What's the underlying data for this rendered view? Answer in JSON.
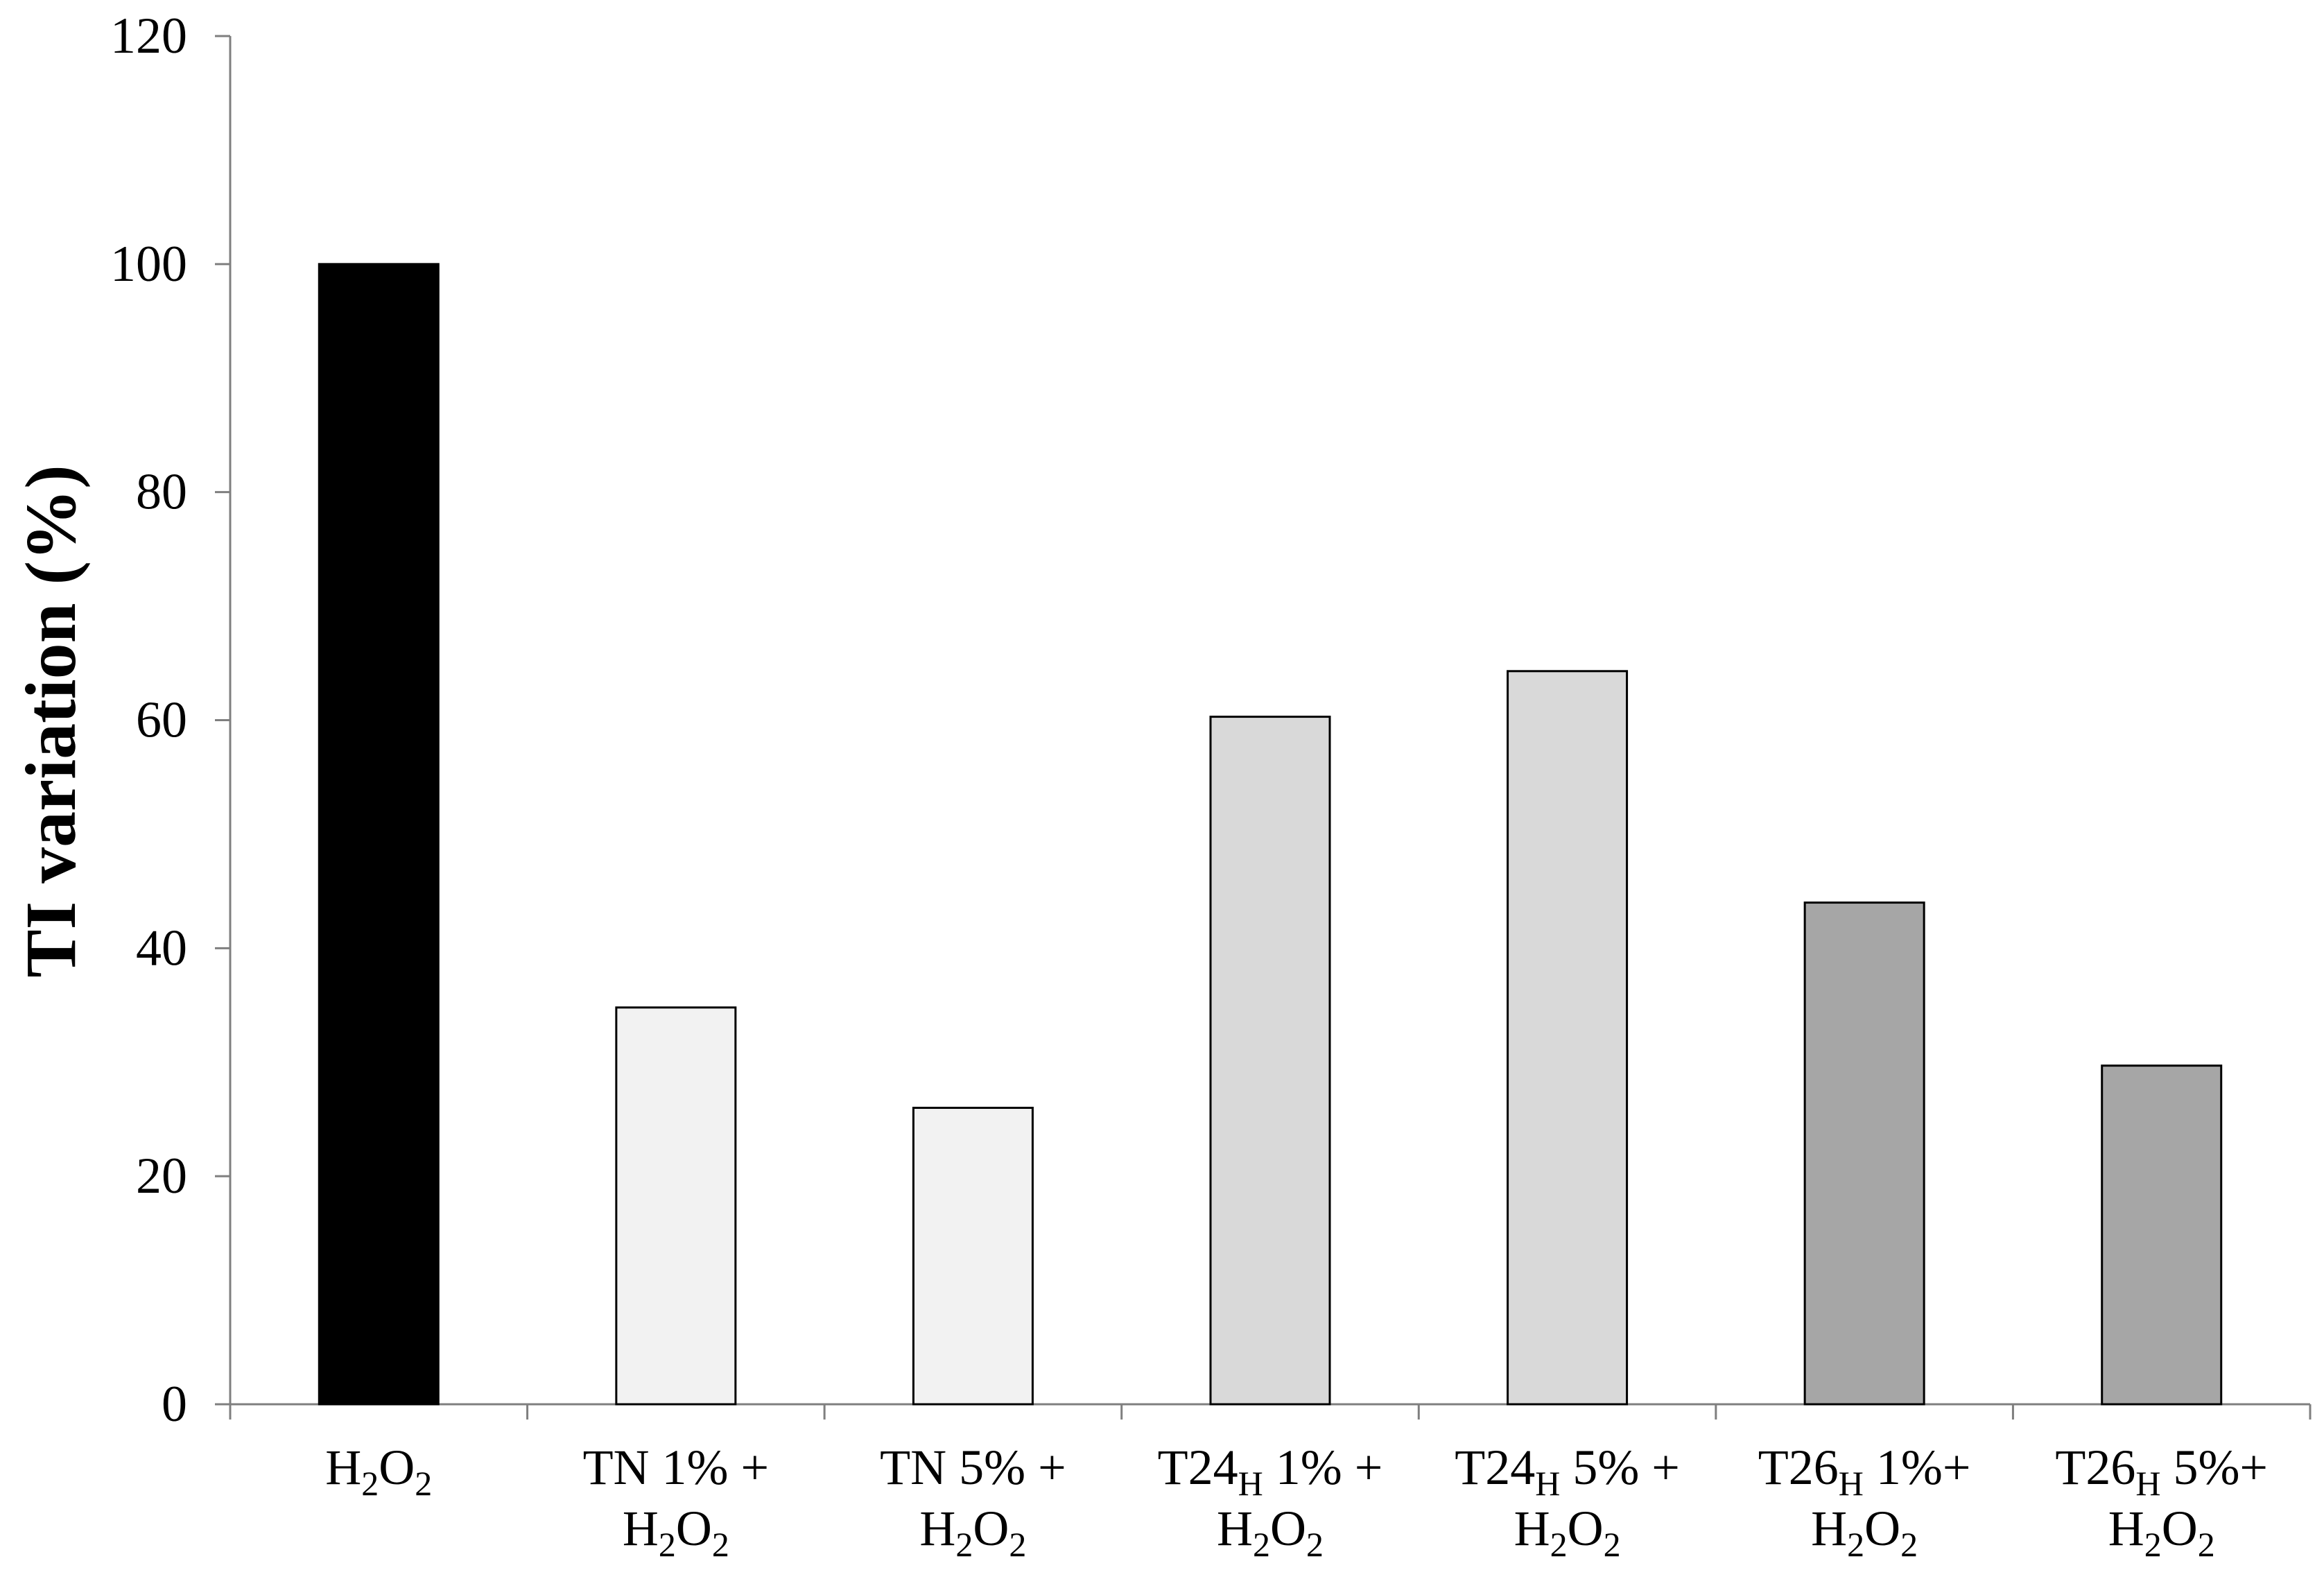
{
  "chart_data": {
    "type": "bar",
    "categories": [
      {
        "id": "h2o2",
        "line1": [
          {
            "t": "H"
          },
          {
            "t": "2",
            "sub": true
          },
          {
            "t": "O"
          },
          {
            "t": "2",
            "sub": true
          }
        ],
        "line2": []
      },
      {
        "id": "tn1",
        "line1": [
          {
            "t": "TN 1% +"
          }
        ],
        "line2": [
          {
            "t": "H"
          },
          {
            "t": "2",
            "sub": true
          },
          {
            "t": "O"
          },
          {
            "t": "2",
            "sub": true
          }
        ]
      },
      {
        "id": "tn5",
        "line1": [
          {
            "t": "TN 5% +"
          }
        ],
        "line2": [
          {
            "t": "H"
          },
          {
            "t": "2",
            "sub": true
          },
          {
            "t": "O"
          },
          {
            "t": "2",
            "sub": true
          }
        ]
      },
      {
        "id": "t24h1",
        "line1": [
          {
            "t": "T24"
          },
          {
            "t": "H",
            "sub": true
          },
          {
            "t": " 1% +"
          }
        ],
        "line2": [
          {
            "t": "H"
          },
          {
            "t": "2",
            "sub": true
          },
          {
            "t": "O"
          },
          {
            "t": "2",
            "sub": true
          }
        ]
      },
      {
        "id": "t24h5",
        "line1": [
          {
            "t": "T24"
          },
          {
            "t": "H",
            "sub": true
          },
          {
            "t": " 5% +"
          }
        ],
        "line2": [
          {
            "t": "H"
          },
          {
            "t": "2",
            "sub": true
          },
          {
            "t": "O"
          },
          {
            "t": "2",
            "sub": true
          }
        ]
      },
      {
        "id": "t26h1",
        "line1": [
          {
            "t": "T26"
          },
          {
            "t": "H",
            "sub": true
          },
          {
            "t": " 1%+"
          }
        ],
        "line2": [
          {
            "t": "H"
          },
          {
            "t": "2",
            "sub": true
          },
          {
            "t": "O"
          },
          {
            "t": "2",
            "sub": true
          }
        ]
      },
      {
        "id": "t26h5",
        "line1": [
          {
            "t": "T26"
          },
          {
            "t": "H",
            "sub": true
          },
          {
            "t": " 5%+"
          }
        ],
        "line2": [
          {
            "t": "H"
          },
          {
            "t": "2",
            "sub": true
          },
          {
            "t": "O"
          },
          {
            "t": "2",
            "sub": true
          }
        ]
      }
    ],
    "values": [
      100,
      34.8,
      26,
      60.3,
      64.3,
      44,
      29.7
    ],
    "colors": [
      "#000000",
      "#f2f2f2",
      "#f2f2f2",
      "#d9d9d9",
      "#d9d9d9",
      "#a6a6a6",
      "#a6a6a6"
    ],
    "ylabel": "TI variation (%)",
    "ylim": [
      0,
      120
    ],
    "yticks": [
      0,
      20,
      40,
      60,
      80,
      100,
      120
    ],
    "grid": false,
    "legend": "none"
  }
}
